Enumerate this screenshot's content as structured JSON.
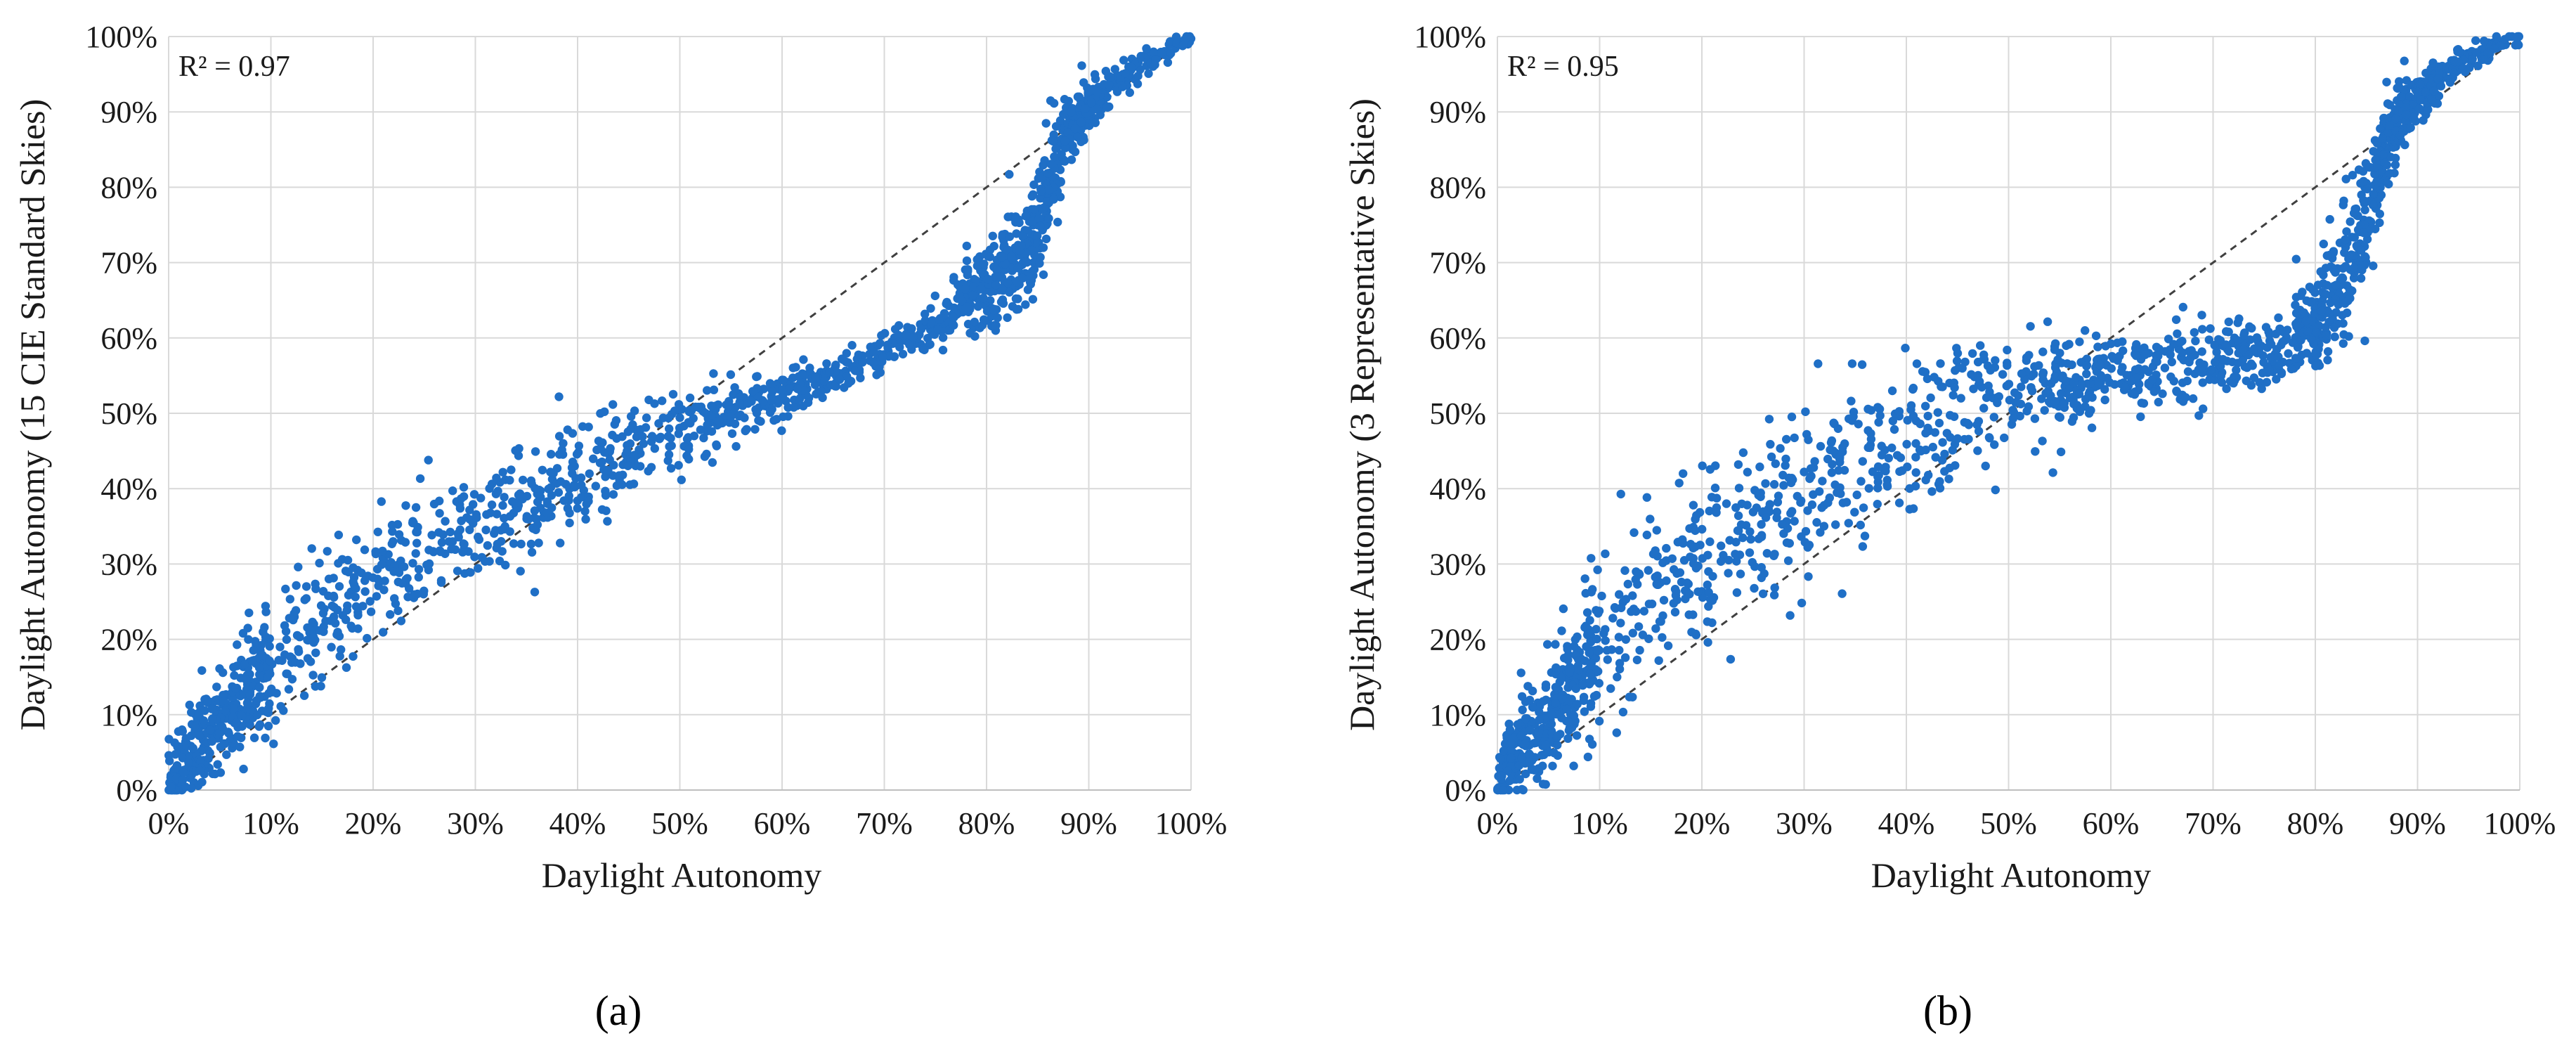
{
  "colors": {
    "series": "#1f6fc6",
    "grid": "#d9d9d9",
    "reference": "#404040"
  },
  "chart_data": [
    {
      "type": "scatter",
      "panel": "(a)",
      "annotation": "R² = 0.97",
      "xlabel": "Daylight Autonomy",
      "ylabel": "Daylight Autonomy (15 CIE Standard Skies)",
      "xlim": [
        0,
        100
      ],
      "ylim": [
        0,
        100
      ],
      "x_ticks": [
        "0%",
        "10%",
        "20%",
        "30%",
        "40%",
        "50%",
        "60%",
        "70%",
        "80%",
        "90%",
        "100%"
      ],
      "y_ticks": [
        "0%",
        "10%",
        "20%",
        "30%",
        "40%",
        "50%",
        "60%",
        "70%",
        "80%",
        "90%",
        "100%"
      ],
      "grid": true,
      "reference_line": [
        [
          0,
          0
        ],
        [
          100,
          100
        ]
      ],
      "trend": [
        [
          0,
          0
        ],
        [
          1,
          3
        ],
        [
          3,
          6
        ],
        [
          5,
          9
        ],
        [
          8,
          14
        ],
        [
          10,
          17
        ],
        [
          15,
          23
        ],
        [
          20,
          28
        ],
        [
          25,
          32
        ],
        [
          30,
          35
        ],
        [
          35,
          38
        ],
        [
          40,
          41
        ],
        [
          45,
          45
        ],
        [
          50,
          48
        ],
        [
          55,
          50
        ],
        [
          60,
          52
        ],
        [
          65,
          55
        ],
        [
          70,
          58
        ],
        [
          75,
          62
        ],
        [
          80,
          67
        ],
        [
          83,
          70
        ],
        [
          85,
          74
        ],
        [
          86,
          79
        ],
        [
          87,
          84
        ],
        [
          88,
          88
        ],
        [
          90,
          91
        ],
        [
          93,
          94
        ],
        [
          96,
          97
        ],
        [
          100,
          100
        ]
      ],
      "spread": [
        [
          0,
          2.5
        ],
        [
          10,
          4
        ],
        [
          20,
          4.5
        ],
        [
          30,
          4
        ],
        [
          40,
          3.5
        ],
        [
          50,
          2.5
        ],
        [
          60,
          1.5
        ],
        [
          70,
          1.2
        ],
        [
          78,
          2
        ],
        [
          82,
          3
        ],
        [
          85,
          4
        ],
        [
          87,
          3
        ],
        [
          90,
          1.5
        ],
        [
          95,
          1
        ],
        [
          100,
          0.5
        ]
      ],
      "point_count": 1800,
      "seed": 13
    },
    {
      "type": "scatter",
      "panel": "(b)",
      "annotation": "R² = 0.95",
      "xlabel": "Daylight Autonomy",
      "ylabel": "Daylight Autonomy (3 Representative Skies)",
      "xlim": [
        0,
        100
      ],
      "ylim": [
        0,
        100
      ],
      "x_ticks": [
        "0%",
        "10%",
        "20%",
        "30%",
        "40%",
        "50%",
        "60%",
        "70%",
        "80%",
        "90%",
        "100%"
      ],
      "y_ticks": [
        "0%",
        "10%",
        "20%",
        "30%",
        "40%",
        "50%",
        "60%",
        "70%",
        "80%",
        "90%",
        "100%"
      ],
      "grid": true,
      "reference_line": [
        [
          0,
          0
        ],
        [
          100,
          100
        ]
      ],
      "trend": [
        [
          0,
          0
        ],
        [
          1,
          3
        ],
        [
          3,
          7
        ],
        [
          5,
          10
        ],
        [
          8,
          15
        ],
        [
          10,
          19
        ],
        [
          15,
          25
        ],
        [
          20,
          30
        ],
        [
          25,
          35
        ],
        [
          30,
          40
        ],
        [
          35,
          44
        ],
        [
          40,
          47
        ],
        [
          45,
          50
        ],
        [
          50,
          53
        ],
        [
          55,
          54
        ],
        [
          60,
          55
        ],
        [
          65,
          56
        ],
        [
          70,
          57
        ],
        [
          75,
          58
        ],
        [
          78,
          60
        ],
        [
          80,
          62
        ],
        [
          82,
          66
        ],
        [
          84,
          72
        ],
        [
          86,
          80
        ],
        [
          87,
          86
        ],
        [
          88,
          89
        ],
        [
          90,
          92
        ],
        [
          93,
          95
        ],
        [
          96,
          98
        ],
        [
          100,
          100
        ]
      ],
      "spread": [
        [
          0,
          2.5
        ],
        [
          10,
          5
        ],
        [
          20,
          6
        ],
        [
          30,
          6
        ],
        [
          40,
          5
        ],
        [
          50,
          4
        ],
        [
          60,
          3
        ],
        [
          70,
          2.5
        ],
        [
          78,
          2.5
        ],
        [
          82,
          4
        ],
        [
          85,
          5
        ],
        [
          87,
          3
        ],
        [
          90,
          1.5
        ],
        [
          95,
          1
        ],
        [
          100,
          0.5
        ]
      ],
      "point_count": 1800,
      "seed": 29
    }
  ]
}
